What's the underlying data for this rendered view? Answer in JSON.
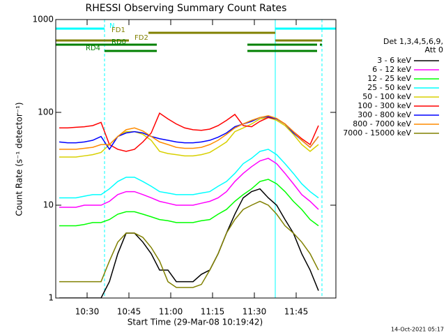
{
  "chart_data": {
    "type": "line",
    "title": "RHESSI Observing Summary Count Rates",
    "xlabel": "Start Time (29-Mar-08 10:19:42)",
    "ylabel": "Count Rate (s⁻¹ detector⁻¹)",
    "legend_header": [
      "Det 1,3,4,5,6,9,",
      "Att 0"
    ],
    "footer": "14-Oct-2021 05:17",
    "log_y": true,
    "xlim": [
      618.75,
      719.25
    ],
    "ylim": [
      1,
      1000
    ],
    "yticks": [
      1,
      10,
      100,
      1000
    ],
    "xticks": [
      {
        "value": 630,
        "label": "10:30"
      },
      {
        "value": 645,
        "label": "10:45"
      },
      {
        "value": 660,
        "label": "11:00"
      },
      {
        "value": 675,
        "label": "11:15"
      },
      {
        "value": 690,
        "label": "11:30"
      },
      {
        "value": 705,
        "label": "11:45"
      }
    ],
    "x": [
      620,
      623,
      626,
      629,
      632,
      635,
      638,
      641,
      644,
      647,
      650,
      653,
      656,
      659,
      662,
      665,
      668,
      671,
      674,
      677,
      680,
      683,
      686,
      689,
      692,
      695,
      698,
      701,
      704,
      707,
      710,
      713
    ],
    "series": [
      {
        "name": "3 - 6 keV",
        "color": "#000000",
        "values": [
          1,
          1,
          1,
          1,
          1,
          1,
          1.5,
          3,
          5,
          5,
          4,
          3,
          2,
          2,
          1.5,
          1.5,
          1.5,
          1.8,
          2,
          3,
          5,
          8,
          12,
          14,
          15,
          12,
          10,
          7,
          5,
          3,
          2,
          1.2
        ]
      },
      {
        "name": "6 - 12 keV",
        "color": "#ff00ff",
        "values": [
          9.5,
          9.5,
          9.5,
          10,
          10,
          10,
          11,
          13,
          14,
          14,
          13,
          12,
          11,
          10.5,
          10,
          10,
          10,
          10.5,
          11,
          12,
          14,
          18,
          22,
          26,
          30,
          32,
          28,
          22,
          17,
          13,
          11,
          9
        ]
      },
      {
        "name": "12 - 25 keV",
        "color": "#00ff00",
        "values": [
          6,
          6,
          6,
          6.2,
          6.5,
          6.5,
          7,
          8,
          8.5,
          8.5,
          8,
          7.5,
          7,
          6.8,
          6.5,
          6.5,
          6.5,
          6.8,
          7,
          8,
          9,
          11,
          13,
          15,
          18,
          19,
          17,
          14,
          11,
          9,
          7,
          6
        ]
      },
      {
        "name": "25 - 50 keV",
        "color": "#00ffff",
        "values": [
          12,
          12,
          12,
          12.5,
          13,
          13,
          15,
          18,
          20,
          20,
          18,
          16,
          14,
          13.5,
          13,
          13,
          13,
          13.5,
          14,
          16,
          18,
          22,
          28,
          32,
          38,
          40,
          35,
          28,
          22,
          17,
          14,
          12
        ]
      },
      {
        "name": "50 - 100 keV",
        "color": "#d8d000",
        "values": [
          33,
          33,
          33,
          34,
          35,
          37,
          45,
          55,
          62,
          62,
          58,
          50,
          38,
          36,
          35,
          34,
          34,
          35,
          37,
          42,
          48,
          62,
          68,
          75,
          85,
          88,
          82,
          72,
          58,
          45,
          38,
          45
        ]
      },
      {
        "name": "100 - 300 keV",
        "color": "#ff0000",
        "values": [
          68,
          68,
          69,
          70,
          72,
          78,
          45,
          40,
          38,
          40,
          48,
          60,
          98,
          85,
          75,
          68,
          65,
          64,
          66,
          72,
          82,
          95,
          72,
          70,
          80,
          88,
          85,
          75,
          62,
          52,
          45,
          72
        ]
      },
      {
        "name": "300 - 800 keV",
        "color": "#0000ff",
        "values": [
          48,
          47,
          47,
          48,
          50,
          55,
          40,
          55,
          60,
          62,
          60,
          55,
          52,
          50,
          48,
          47,
          47,
          48,
          50,
          54,
          60,
          70,
          75,
          80,
          88,
          90,
          85,
          75,
          60,
          50,
          42,
          55
        ]
      },
      {
        "name": "800 - 7000 keV",
        "color": "#ff8c00",
        "values": [
          40,
          40,
          40,
          41,
          42,
          45,
          45,
          55,
          65,
          68,
          63,
          55,
          48,
          45,
          42,
          41,
          41,
          42,
          45,
          50,
          58,
          68,
          75,
          82,
          88,
          92,
          86,
          75,
          62,
          50,
          42,
          55
        ]
      },
      {
        "name": "7000 - 15000 keV",
        "color": "#808000",
        "values": [
          1.5,
          1.5,
          1.5,
          1.5,
          1.5,
          1.5,
          2.5,
          4,
          5,
          5,
          4.5,
          3.5,
          2.5,
          1.5,
          1.3,
          1.3,
          1.3,
          1.4,
          2,
          3,
          5,
          7,
          9,
          10,
          11,
          10,
          8,
          6,
          5,
          4,
          3,
          2
        ]
      }
    ],
    "flags": [
      {
        "name": "N",
        "color": "#00ffff",
        "segments": [
          [
            618.75,
            636.25
          ],
          [
            697.5,
            719.25
          ]
        ]
      },
      {
        "name": "FD1",
        "color": "#808000",
        "segments": [
          [
            652,
            697.5
          ]
        ]
      },
      {
        "name": "FD2",
        "color": "#808000",
        "segments": [
          [
            618.75,
            645
          ],
          [
            697.5,
            714.25
          ]
        ]
      },
      {
        "name": "RD0",
        "color": "#008000",
        "segments": [
          [
            618.75,
            655
          ],
          [
            687.5,
            712.5
          ],
          [
            713.5,
            714.25
          ]
        ]
      },
      {
        "name": "RD4",
        "color": "#008000",
        "segments": [
          [
            636.25,
            655
          ],
          [
            687.5,
            712.5
          ]
        ]
      }
    ],
    "marker_lines": [
      {
        "x": 618.75,
        "style": "solid",
        "color": "#00ffff"
      },
      {
        "x": 636.25,
        "style": "dashed",
        "color": "#00ffff"
      },
      {
        "x": 697.5,
        "style": "solid",
        "color": "#00ffff"
      },
      {
        "x": 714.25,
        "style": "dashed",
        "color": "#00ffff"
      }
    ]
  }
}
